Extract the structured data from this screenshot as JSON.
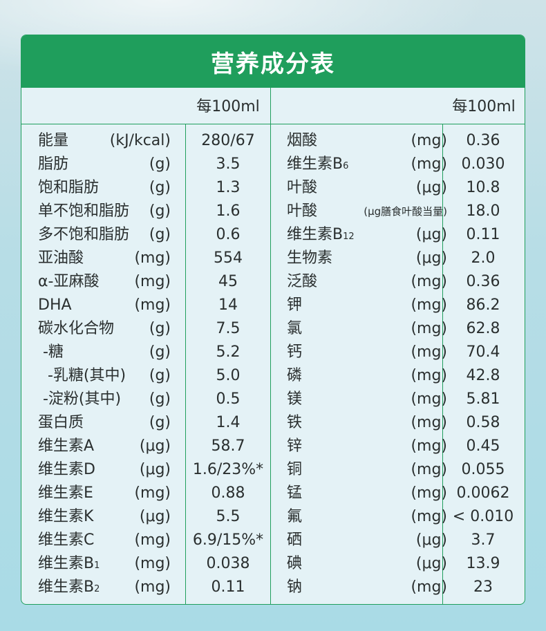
{
  "title": "营养成分表",
  "per_label_left": "每100ml",
  "per_label_right": "每100ml",
  "left": [
    {
      "name": "能量",
      "unit": "(kJ/kcal)",
      "value": "280/67"
    },
    {
      "name": "脂肪",
      "unit": "(g)",
      "value": "3.5"
    },
    {
      "name": "饱和脂肪",
      "unit": "(g)",
      "value": "1.3"
    },
    {
      "name": "单不饱和脂肪",
      "unit": "(g)",
      "value": "1.6"
    },
    {
      "name": "多不饱和脂肪",
      "unit": "(g)",
      "value": "0.6"
    },
    {
      "name": "亚油酸",
      "unit": "(mg)",
      "value": "554"
    },
    {
      "name": "α-亚麻酸",
      "unit": "(mg)",
      "value": "45"
    },
    {
      "name": "DHA",
      "unit": "(mg)",
      "value": "14"
    },
    {
      "name": "碳水化合物",
      "unit": "(g)",
      "value": "7.5"
    },
    {
      "name": " -糖",
      "unit": "(g)",
      "value": "5.2"
    },
    {
      "name": "  -乳糖(其中)",
      "unit": "(g)",
      "value": "5.0"
    },
    {
      "name": " -淀粉(其中)",
      "unit": "(g)",
      "value": "0.5"
    },
    {
      "name": "蛋白质",
      "unit": "(g)",
      "value": "1.4"
    },
    {
      "name": "维生素A",
      "unit": "(μg)",
      "value": "58.7"
    },
    {
      "name": "维生素D",
      "unit": "(μg)",
      "value": "1.6/23%*"
    },
    {
      "name": "维生素E",
      "unit": "(mg)",
      "value": "0.88"
    },
    {
      "name": "维生素K",
      "unit": "(μg)",
      "value": "5.5"
    },
    {
      "name": "维生素C",
      "unit": "(mg)",
      "value": "6.9/15%*"
    },
    {
      "name": "维生素B",
      "sub": "1",
      "unit": "(mg)",
      "value": "0.038"
    },
    {
      "name": "维生素B",
      "sub": "2",
      "unit": "(mg)",
      "value": "0.11"
    }
  ],
  "right": [
    {
      "name": "烟酸",
      "unit": "(mg)",
      "value": "0.36"
    },
    {
      "name": "维生素B",
      "sub": "6",
      "unit": "(mg)",
      "value": "0.030"
    },
    {
      "name": "叶酸",
      "unit": "(μg)",
      "value": "10.8"
    },
    {
      "name": "叶酸",
      "unit": "(μg膳食叶酸当量)",
      "value": "18.0",
      "small": true
    },
    {
      "name": "维生素B",
      "sub": "12",
      "unit": "(μg)",
      "value": "0.11"
    },
    {
      "name": "生物素",
      "unit": "(μg)",
      "value": "2.0"
    },
    {
      "name": "泛酸",
      "unit": "(mg)",
      "value": "0.36"
    },
    {
      "name": "钾",
      "unit": "(mg)",
      "value": "86.2"
    },
    {
      "name": "氯",
      "unit": "(mg)",
      "value": "62.8"
    },
    {
      "name": "钙",
      "unit": "(mg)",
      "value": "70.4"
    },
    {
      "name": "磷",
      "unit": "(mg)",
      "value": "42.8"
    },
    {
      "name": "镁",
      "unit": "(mg)",
      "value": "5.81"
    },
    {
      "name": "铁",
      "unit": "(mg)",
      "value": "0.58"
    },
    {
      "name": "锌",
      "unit": "(mg)",
      "value": "0.45"
    },
    {
      "name": "铜",
      "unit": "(mg)",
      "value": "0.055"
    },
    {
      "name": "锰",
      "unit": "(mg)",
      "value": "0.0062"
    },
    {
      "name": "氟",
      "unit": "(mg)",
      "value": "< 0.010"
    },
    {
      "name": "硒",
      "unit": "(μg)",
      "value": "3.7"
    },
    {
      "name": "碘",
      "unit": "(μg)",
      "value": "13.9"
    },
    {
      "name": "钠",
      "unit": "(mg)",
      "value": "23"
    }
  ],
  "colors": {
    "accent": "#1f9e5c",
    "card_bg": "#e4f2f6",
    "text": "#2a2f2f"
  }
}
